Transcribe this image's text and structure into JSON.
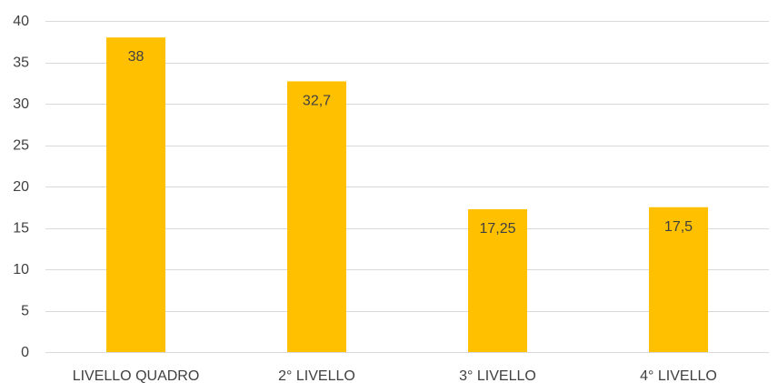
{
  "chart_data": {
    "type": "bar",
    "title": "",
    "xlabel": "",
    "ylabel": "",
    "categories": [
      "LIVELLO QUADRO",
      "2° LIVELLO",
      "3° LIVELLO",
      "4° LIVELLO"
    ],
    "values": [
      38,
      32.7,
      17.25,
      17.5
    ],
    "data_labels": [
      "38",
      "32,7",
      "17,25",
      "17,5"
    ],
    "ylim": [
      0,
      40
    ],
    "yticks": [
      0,
      5,
      10,
      15,
      20,
      25,
      30,
      35,
      40
    ],
    "grid": true,
    "legend": "none",
    "bar_color": "#FFC000"
  }
}
